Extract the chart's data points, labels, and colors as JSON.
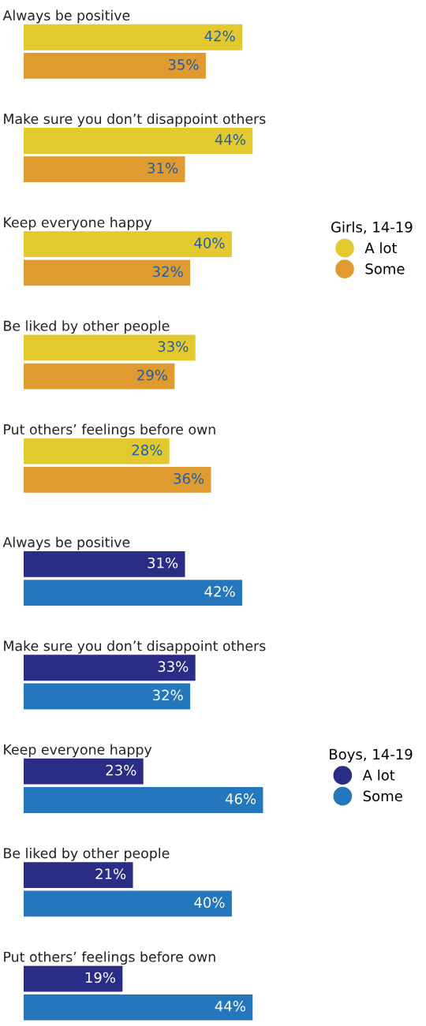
{
  "chart_data": [
    {
      "type": "bar",
      "orientation": "horizontal",
      "legend_title": "Girls, 14-19",
      "legend": "right",
      "tick_labels": false,
      "categories": [
        "Always be positive",
        "Make sure you don’t disappoint others",
        "Keep everyone happy",
        "Be liked by other people",
        "Put others’ feelings before own"
      ],
      "series": [
        {
          "name": "A lot",
          "color": "#e3c92e",
          "values": [
            42,
            44,
            40,
            33,
            28
          ],
          "value_labels": [
            "42%",
            "44%",
            "40%",
            "33%",
            "28%"
          ]
        },
        {
          "name": "Some",
          "color": "#df9a30",
          "values": [
            35,
            31,
            32,
            29,
            36
          ],
          "value_labels": [
            "35%",
            "31%",
            "32%",
            "29%",
            "36%"
          ]
        }
      ]
    },
    {
      "type": "bar",
      "orientation": "horizontal",
      "legend_title": "Boys, 14-19",
      "legend": "right",
      "tick_labels": false,
      "categories": [
        "Always be positive",
        "Make sure you don’t disappoint others",
        "Keep everyone happy",
        "Be liked by other people",
        "Put others’ feelings before own"
      ],
      "series": [
        {
          "name": "A lot",
          "color": "#2a2d85",
          "values": [
            31,
            33,
            23,
            21,
            19
          ],
          "value_labels": [
            "31%",
            "33%",
            "23%",
            "21%",
            "19%"
          ]
        },
        {
          "name": "Some",
          "color": "#2477bd",
          "values": [
            42,
            32,
            46,
            40,
            44
          ],
          "value_labels": [
            "42%",
            "32%",
            "46%",
            "40%",
            "44%"
          ]
        }
      ]
    }
  ]
}
